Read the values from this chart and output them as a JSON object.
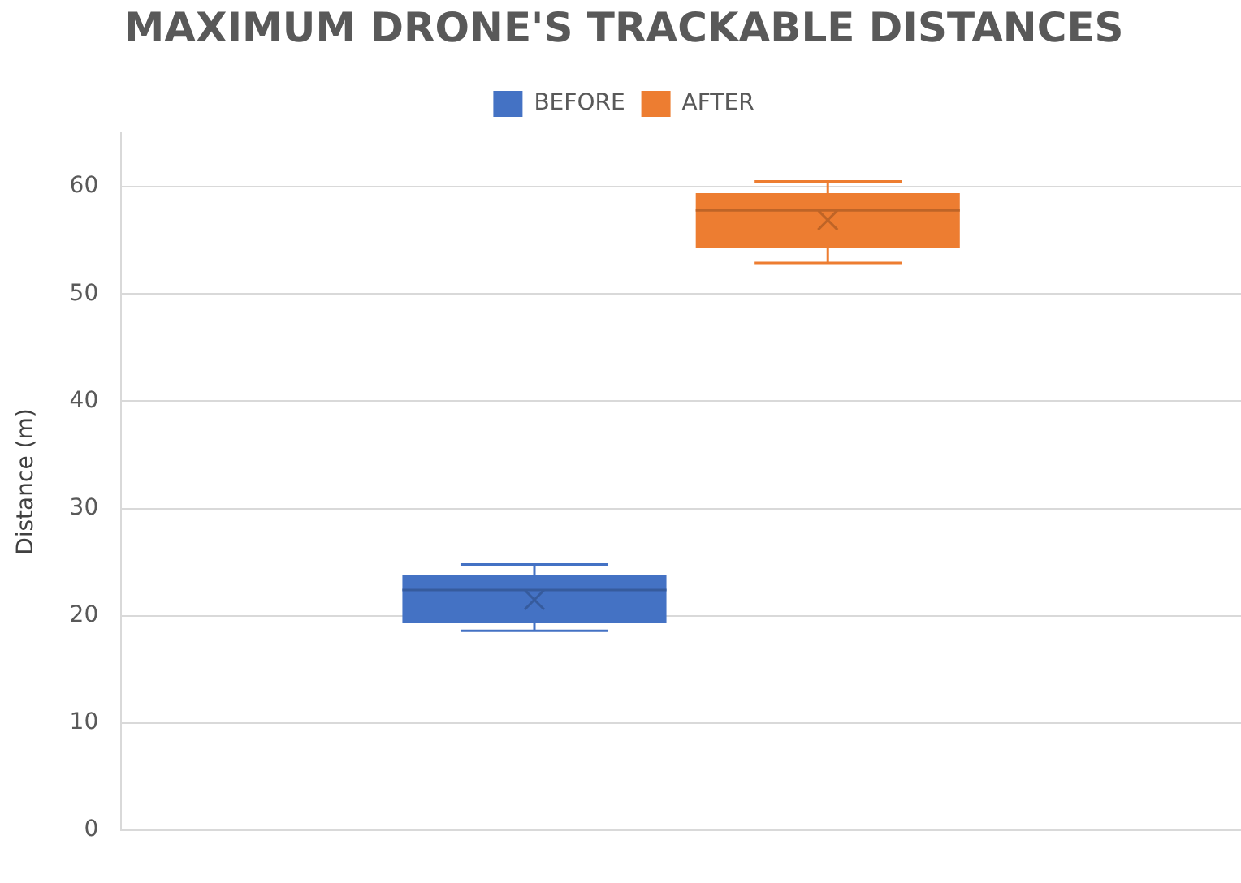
{
  "chart_data": {
    "type": "box",
    "title": "MAXIMUM DRONE'S TRACKABLE DISTANCES",
    "ylabel": "Distance (m)",
    "categories": [
      null
    ],
    "series": [
      {
        "name": "BEFORE",
        "color": "#4472c4",
        "boxes": [
          {
            "low": 18.6,
            "q1": 19.3,
            "median": 22.4,
            "q3": 23.8,
            "high": 24.8,
            "mean": 21.5
          }
        ]
      },
      {
        "name": "AFTER",
        "color": "#ed7d31",
        "boxes": [
          {
            "low": 52.9,
            "q1": 54.3,
            "median": 57.8,
            "q3": 59.4,
            "high": 60.5,
            "mean": 56.9
          }
        ]
      }
    ],
    "ylim": [
      0,
      65
    ],
    "yticks": [
      0,
      10,
      20,
      30,
      40,
      50,
      60
    ],
    "grid": "y",
    "legend": "top"
  }
}
